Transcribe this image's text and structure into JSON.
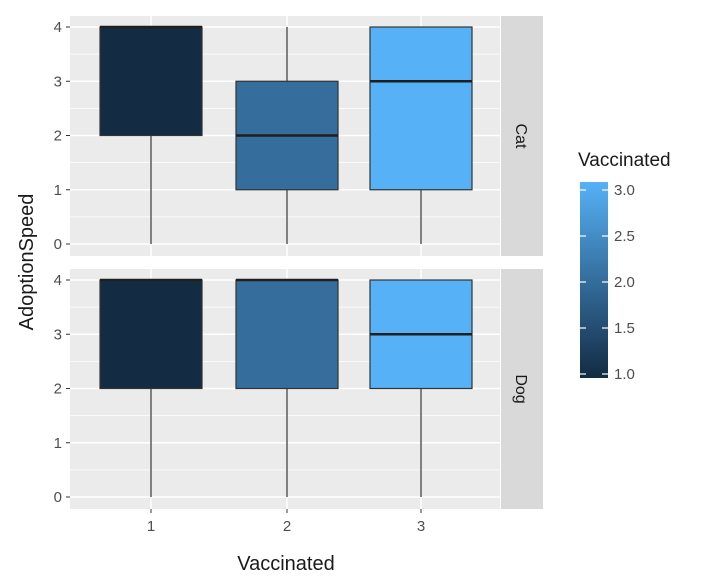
{
  "chart_data": {
    "type": "boxplot",
    "xlabel": "Vaccinated",
    "ylabel": "AdoptionSpeed",
    "categories": [
      "1",
      "2",
      "3"
    ],
    "x_values": [
      1,
      2,
      3
    ],
    "yticks": [
      0,
      1,
      2,
      3,
      4
    ],
    "ylim": [
      0,
      4
    ],
    "facets": [
      {
        "label": "Cat",
        "boxes": [
          {
            "x": 1,
            "min": 0,
            "q1": 2,
            "median": 4,
            "q3": 4,
            "max": 4
          },
          {
            "x": 2,
            "min": 0,
            "q1": 1,
            "median": 2,
            "q3": 3,
            "max": 4
          },
          {
            "x": 3,
            "min": 0,
            "q1": 1,
            "median": 3,
            "q3": 4,
            "max": 4
          }
        ]
      },
      {
        "label": "Dog",
        "boxes": [
          {
            "x": 1,
            "min": 0,
            "q1": 2,
            "median": 4,
            "q3": 4,
            "max": 4
          },
          {
            "x": 2,
            "min": 0,
            "q1": 2,
            "median": 4,
            "q3": 4,
            "max": 4
          },
          {
            "x": 3,
            "min": 0,
            "q1": 2,
            "median": 3,
            "q3": 4,
            "max": 4
          }
        ]
      }
    ],
    "legend": {
      "title": "Vaccinated",
      "ticks": [
        "1.0",
        "1.5",
        "2.0",
        "2.5",
        "3.0"
      ],
      "tick_values": [
        1.0,
        1.5,
        2.0,
        2.5,
        3.0
      ],
      "range": [
        1.0,
        3.0
      ],
      "placement": "right",
      "color_low": "#132B43",
      "color_high": "#56B1F7"
    },
    "grid": true,
    "panel_background": "#EBEBEB",
    "strip_background": "#D9D9D9"
  }
}
